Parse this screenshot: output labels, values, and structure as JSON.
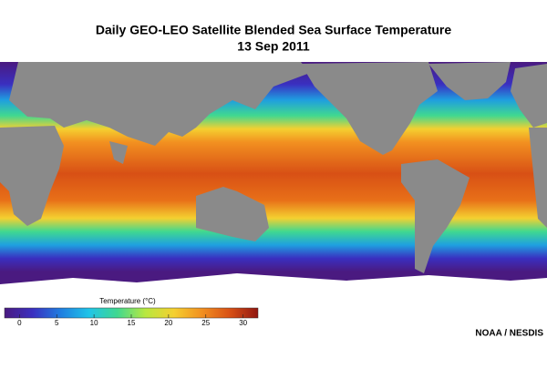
{
  "title": "Daily GEO-LEO Satellite Blended Sea Surface Temperature",
  "subtitle": "13 Sep 2011",
  "colorbar": {
    "label": "Temperature (°C)",
    "range": [
      -2,
      32
    ],
    "ticks": [
      0,
      5,
      10,
      15,
      20,
      25,
      30
    ],
    "colors": [
      "#4a1a80",
      "#3a2fc0",
      "#1f7ee0",
      "#1fc4e8",
      "#40d890",
      "#b8e840",
      "#f4d030",
      "#f29020",
      "#d85015",
      "#901510"
    ]
  },
  "credit": "NOAA / NESDIS"
}
